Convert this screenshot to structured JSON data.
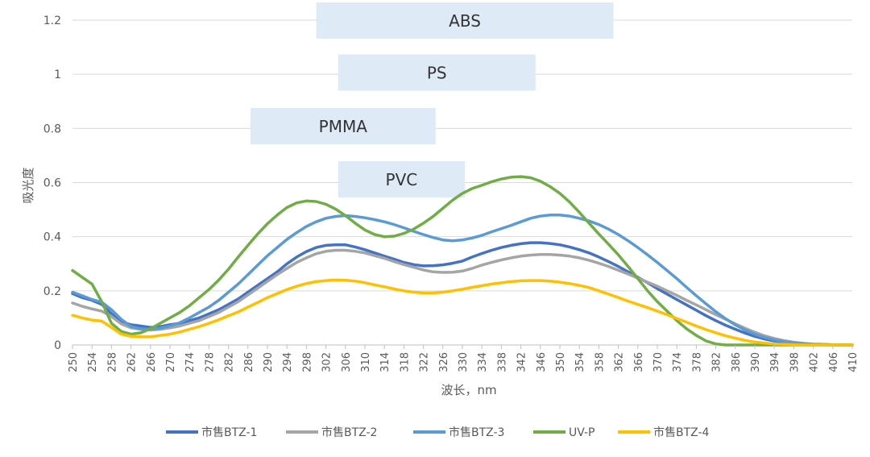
{
  "chart_data": {
    "type": "line",
    "title": "",
    "xlabel": "波长，nm",
    "ylabel": "吸光度",
    "xlim": [
      250,
      410
    ],
    "ylim": [
      0,
      1.2
    ],
    "yticks": [
      "0",
      "0.2",
      "0.4",
      "0.6",
      "0.8",
      "1",
      "1.2"
    ],
    "xticks": [
      250,
      254,
      258,
      262,
      266,
      270,
      274,
      278,
      282,
      286,
      290,
      294,
      298,
      302,
      306,
      310,
      314,
      318,
      322,
      326,
      330,
      334,
      338,
      342,
      346,
      350,
      354,
      358,
      362,
      366,
      370,
      374,
      378,
      382,
      386,
      390,
      394,
      398,
      402,
      406,
      410
    ],
    "grid": true,
    "legend_position": "bottom",
    "annotations": [
      {
        "text": "ABS",
        "x_start": 300,
        "x_end": 361
      },
      {
        "text": "PS",
        "x_start": 304.5,
        "x_end": 345
      },
      {
        "text": "PMMA",
        "x_start": 286.5,
        "x_end": 324.5
      },
      {
        "text": "PVC",
        "x_start": 304.5,
        "x_end": 330.5
      }
    ],
    "x": [
      250,
      252,
      254,
      256,
      258,
      260,
      262,
      264,
      266,
      268,
      270,
      272,
      274,
      276,
      278,
      280,
      282,
      284,
      286,
      288,
      290,
      292,
      294,
      296,
      298,
      300,
      302,
      304,
      306,
      308,
      310,
      312,
      314,
      316,
      318,
      320,
      322,
      324,
      326,
      328,
      330,
      332,
      334,
      336,
      338,
      340,
      342,
      344,
      346,
      348,
      350,
      352,
      354,
      356,
      358,
      360,
      362,
      364,
      366,
      368,
      370,
      372,
      374,
      376,
      378,
      380,
      382,
      384,
      386,
      388,
      390,
      392,
      394,
      396,
      398,
      400,
      402,
      404,
      406,
      408,
      410
    ],
    "series": [
      {
        "name": "市售BTZ-1",
        "color": "#4472C4",
        "values": [
          0.19,
          0.175,
          0.165,
          0.15,
          0.115,
          0.085,
          0.075,
          0.07,
          0.065,
          0.068,
          0.075,
          0.08,
          0.09,
          0.1,
          0.115,
          0.13,
          0.15,
          0.17,
          0.195,
          0.22,
          0.245,
          0.27,
          0.3,
          0.325,
          0.345,
          0.36,
          0.368,
          0.37,
          0.37,
          0.362,
          0.352,
          0.34,
          0.328,
          0.317,
          0.305,
          0.297,
          0.292,
          0.293,
          0.296,
          0.302,
          0.31,
          0.325,
          0.338,
          0.35,
          0.36,
          0.368,
          0.374,
          0.378,
          0.378,
          0.375,
          0.37,
          0.362,
          0.352,
          0.34,
          0.325,
          0.308,
          0.29,
          0.27,
          0.25,
          0.23,
          0.208,
          0.188,
          0.168,
          0.148,
          0.128,
          0.108,
          0.09,
          0.073,
          0.058,
          0.044,
          0.032,
          0.022,
          0.015,
          0.01,
          0.006,
          0.004,
          0.002,
          0.001,
          0,
          0,
          0
        ]
      },
      {
        "name": "市售BTZ-2",
        "color": "#A5A5A5",
        "values": [
          0.155,
          0.143,
          0.133,
          0.125,
          0.105,
          0.078,
          0.063,
          0.058,
          0.055,
          0.058,
          0.063,
          0.07,
          0.08,
          0.09,
          0.105,
          0.12,
          0.14,
          0.16,
          0.185,
          0.21,
          0.235,
          0.26,
          0.283,
          0.305,
          0.322,
          0.337,
          0.346,
          0.35,
          0.35,
          0.346,
          0.34,
          0.33,
          0.32,
          0.308,
          0.297,
          0.287,
          0.277,
          0.27,
          0.268,
          0.269,
          0.273,
          0.283,
          0.295,
          0.305,
          0.314,
          0.322,
          0.328,
          0.332,
          0.334,
          0.334,
          0.332,
          0.328,
          0.322,
          0.313,
          0.302,
          0.29,
          0.276,
          0.262,
          0.247,
          0.232,
          0.217,
          0.2,
          0.183,
          0.165,
          0.148,
          0.13,
          0.112,
          0.095,
          0.078,
          0.062,
          0.047,
          0.034,
          0.024,
          0.016,
          0.01,
          0.006,
          0.003,
          0.002,
          0.001,
          0,
          0
        ]
      },
      {
        "name": "市售BTZ-3",
        "color": "#5B9BD5",
        "values": [
          0.195,
          0.182,
          0.168,
          0.158,
          0.13,
          0.095,
          0.068,
          0.06,
          0.058,
          0.062,
          0.07,
          0.082,
          0.1,
          0.12,
          0.14,
          0.165,
          0.195,
          0.225,
          0.26,
          0.295,
          0.33,
          0.36,
          0.39,
          0.415,
          0.438,
          0.455,
          0.468,
          0.475,
          0.478,
          0.475,
          0.47,
          0.463,
          0.455,
          0.445,
          0.433,
          0.42,
          0.408,
          0.397,
          0.388,
          0.385,
          0.388,
          0.395,
          0.405,
          0.418,
          0.43,
          0.442,
          0.455,
          0.468,
          0.476,
          0.48,
          0.48,
          0.476,
          0.468,
          0.458,
          0.445,
          0.428,
          0.408,
          0.385,
          0.36,
          0.333,
          0.305,
          0.275,
          0.245,
          0.213,
          0.182,
          0.152,
          0.123,
          0.097,
          0.074,
          0.055,
          0.04,
          0.028,
          0.019,
          0.012,
          0.008,
          0.005,
          0.003,
          0.002,
          0.001,
          0,
          0
        ]
      },
      {
        "name": "UV-P",
        "color": "#70AD47",
        "values": [
          0.275,
          0.25,
          0.225,
          0.16,
          0.08,
          0.05,
          0.04,
          0.045,
          0.06,
          0.08,
          0.1,
          0.12,
          0.145,
          0.175,
          0.205,
          0.24,
          0.28,
          0.325,
          0.368,
          0.41,
          0.448,
          0.48,
          0.508,
          0.525,
          0.532,
          0.53,
          0.52,
          0.502,
          0.478,
          0.45,
          0.425,
          0.408,
          0.4,
          0.402,
          0.412,
          0.428,
          0.45,
          0.475,
          0.505,
          0.535,
          0.56,
          0.578,
          0.59,
          0.603,
          0.613,
          0.62,
          0.622,
          0.618,
          0.605,
          0.585,
          0.56,
          0.528,
          0.49,
          0.45,
          0.41,
          0.372,
          0.333,
          0.29,
          0.245,
          0.2,
          0.16,
          0.125,
          0.09,
          0.06,
          0.035,
          0.015,
          0.004,
          0,
          0,
          0,
          0,
          0,
          0,
          0,
          0,
          0,
          0,
          0,
          0,
          0,
          0
        ]
      },
      {
        "name": "市售BTZ-4",
        "color": "#FFC000",
        "values": [
          0.11,
          0.1,
          0.092,
          0.088,
          0.065,
          0.04,
          0.032,
          0.03,
          0.03,
          0.035,
          0.04,
          0.048,
          0.058,
          0.068,
          0.08,
          0.093,
          0.108,
          0.122,
          0.14,
          0.157,
          0.175,
          0.19,
          0.205,
          0.217,
          0.227,
          0.234,
          0.238,
          0.24,
          0.239,
          0.236,
          0.23,
          0.222,
          0.215,
          0.207,
          0.2,
          0.195,
          0.192,
          0.192,
          0.195,
          0.2,
          0.206,
          0.213,
          0.219,
          0.225,
          0.23,
          0.234,
          0.237,
          0.238,
          0.238,
          0.236,
          0.232,
          0.227,
          0.22,
          0.212,
          0.2,
          0.188,
          0.175,
          0.162,
          0.15,
          0.138,
          0.125,
          0.112,
          0.098,
          0.084,
          0.07,
          0.057,
          0.045,
          0.034,
          0.025,
          0.017,
          0.011,
          0.007,
          0.004,
          0.002,
          0.001,
          0,
          0,
          0,
          0,
          0,
          0
        ]
      }
    ]
  }
}
